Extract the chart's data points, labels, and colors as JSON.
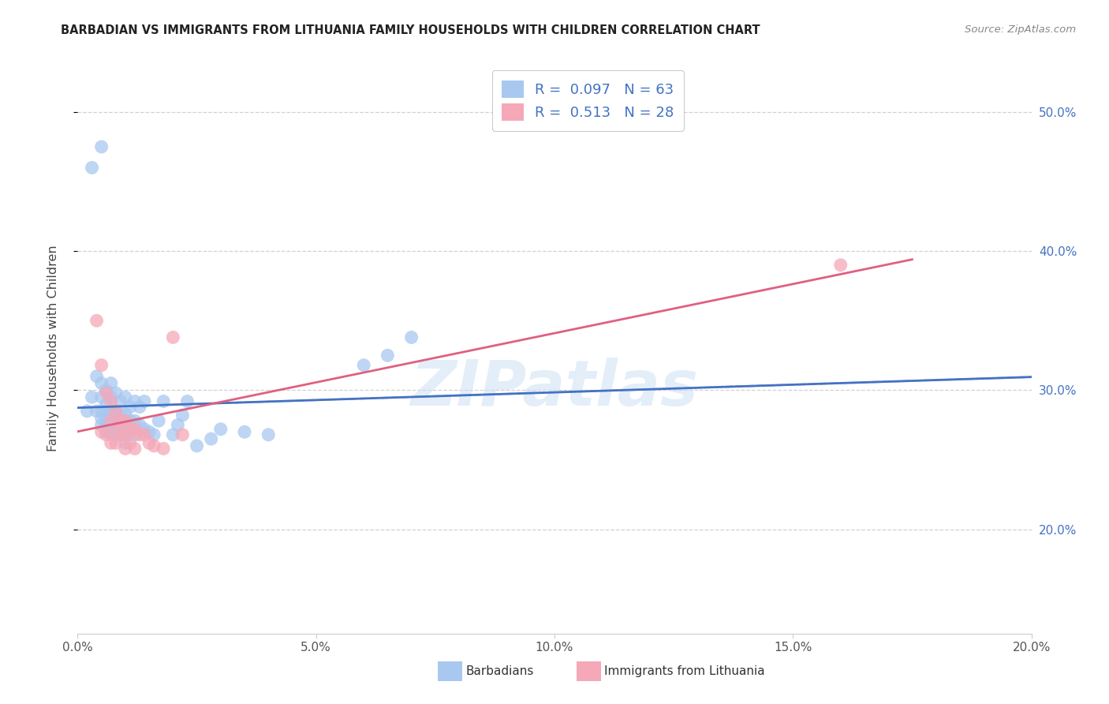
{
  "title": "BARBADIAN VS IMMIGRANTS FROM LITHUANIA FAMILY HOUSEHOLDS WITH CHILDREN CORRELATION CHART",
  "source": "Source: ZipAtlas.com",
  "ylabel": "Family Households with Children",
  "ytick_labels": [
    "20.0%",
    "30.0%",
    "40.0%",
    "50.0%"
  ],
  "ytick_values": [
    0.2,
    0.3,
    0.4,
    0.5
  ],
  "xlim": [
    0.0,
    0.2
  ],
  "ylim": [
    0.125,
    0.535
  ],
  "legend_label1": "R =  0.097   N = 63",
  "legend_label2": "R =  0.513   N = 28",
  "color_blue": "#a8c8f0",
  "color_pink": "#f5a8b8",
  "line_blue": "#4472c4",
  "line_pink": "#e06080",
  "line_dashed_color": "#b0b8c8",
  "watermark": "ZIPatlas",
  "barbadians_x": [
    0.002,
    0.003,
    0.004,
    0.004,
    0.005,
    0.005,
    0.005,
    0.005,
    0.005,
    0.006,
    0.006,
    0.006,
    0.006,
    0.006,
    0.006,
    0.007,
    0.007,
    0.007,
    0.007,
    0.007,
    0.007,
    0.008,
    0.008,
    0.008,
    0.008,
    0.008,
    0.009,
    0.009,
    0.009,
    0.009,
    0.01,
    0.01,
    0.01,
    0.01,
    0.01,
    0.011,
    0.011,
    0.011,
    0.012,
    0.012,
    0.012,
    0.013,
    0.013,
    0.014,
    0.014,
    0.015,
    0.016,
    0.017,
    0.018,
    0.02,
    0.021,
    0.022,
    0.023,
    0.025,
    0.028,
    0.03,
    0.035,
    0.04,
    0.06,
    0.065,
    0.07,
    0.003,
    0.005
  ],
  "barbadians_y": [
    0.285,
    0.295,
    0.285,
    0.31,
    0.275,
    0.28,
    0.285,
    0.295,
    0.305,
    0.27,
    0.275,
    0.28,
    0.285,
    0.29,
    0.3,
    0.27,
    0.275,
    0.28,
    0.285,
    0.295,
    0.305,
    0.268,
    0.272,
    0.278,
    0.285,
    0.298,
    0.268,
    0.275,
    0.282,
    0.292,
    0.262,
    0.268,
    0.275,
    0.283,
    0.295,
    0.27,
    0.278,
    0.288,
    0.268,
    0.278,
    0.292,
    0.275,
    0.288,
    0.272,
    0.292,
    0.27,
    0.268,
    0.278,
    0.292,
    0.268,
    0.275,
    0.282,
    0.292,
    0.26,
    0.265,
    0.272,
    0.27,
    0.268,
    0.318,
    0.325,
    0.338,
    0.46,
    0.475
  ],
  "lithuania_x": [
    0.004,
    0.005,
    0.005,
    0.006,
    0.006,
    0.007,
    0.007,
    0.007,
    0.008,
    0.008,
    0.008,
    0.009,
    0.009,
    0.01,
    0.01,
    0.01,
    0.011,
    0.011,
    0.012,
    0.012,
    0.013,
    0.014,
    0.015,
    0.016,
    0.018,
    0.02,
    0.022,
    0.16
  ],
  "lithuania_y": [
    0.35,
    0.318,
    0.27,
    0.268,
    0.298,
    0.262,
    0.278,
    0.292,
    0.262,
    0.272,
    0.285,
    0.268,
    0.278,
    0.258,
    0.268,
    0.278,
    0.262,
    0.272,
    0.258,
    0.272,
    0.268,
    0.268,
    0.262,
    0.26,
    0.258,
    0.338,
    0.268,
    0.39
  ],
  "footer_label1": "Barbadians",
  "footer_label2": "Immigrants from Lithuania"
}
